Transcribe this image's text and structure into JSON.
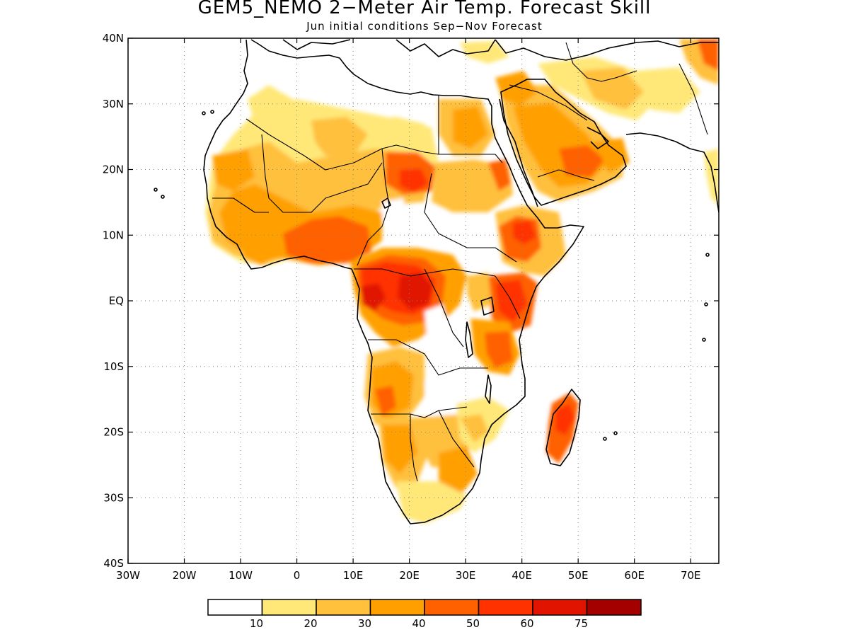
{
  "title": "GEM5_NEMO 2−Meter Air Temp. Forecast Skill",
  "subtitle": "Jun initial conditions  Sep−Nov Forecast",
  "map": {
    "lon_range": [
      -30,
      75
    ],
    "lat_range": [
      -40,
      40
    ],
    "grid": "dotted",
    "x_ticks": [
      "30W",
      "20W",
      "10W",
      "0",
      "10E",
      "20E",
      "30E",
      "40E",
      "50E",
      "60E",
      "70E"
    ],
    "y_ticks": [
      "40N",
      "30N",
      "20N",
      "10N",
      "EQ",
      "10S",
      "20S",
      "30S",
      "40S"
    ]
  },
  "colorbar": {
    "colors": [
      "#ffffff",
      "#ffe878",
      "#ffc03c",
      "#ffa000",
      "#ff6000",
      "#ff3200",
      "#e11400",
      "#a50000"
    ],
    "labels": [
      "10",
      "20",
      "30",
      "40",
      "50",
      "60",
      "75"
    ]
  },
  "chart_data": {
    "type": "heatmap",
    "title": "GEM5_NEMO 2−Meter Air Temp. Forecast Skill",
    "subtitle": "Jun initial conditions  Sep−Nov Forecast",
    "x_range": [
      -30,
      75
    ],
    "y_range": [
      -40,
      40
    ],
    "levels": [
      10,
      20,
      30,
      40,
      50,
      60,
      75
    ],
    "regions": [
      {
        "lon": [
          -13,
          -3
        ],
        "lat": [
          12,
          22
        ],
        "skill": 30
      },
      {
        "lon": [
          -5,
          5
        ],
        "lat": [
          15,
          28
        ],
        "skill": 20
      },
      {
        "lon": [
          0,
          12
        ],
        "lat": [
          5,
          12
        ],
        "skill": 50
      },
      {
        "lon": [
          8,
          16
        ],
        "lat": [
          14,
          22
        ],
        "skill": 30
      },
      {
        "lon": [
          14,
          25
        ],
        "lat": [
          14,
          24
        ],
        "skill": 40
      },
      {
        "lon": [
          10,
          28
        ],
        "lat": [
          -2,
          6
        ],
        "skill": 60
      },
      {
        "lon": [
          17,
          24
        ],
        "lat": [
          -1,
          4
        ],
        "skill": 75
      },
      {
        "lon": [
          33,
          42
        ],
        "lat": [
          -3,
          9
        ],
        "skill": 60
      },
      {
        "lon": [
          30,
          38
        ],
        "lat": [
          -10,
          -3
        ],
        "skill": 50
      },
      {
        "lon": [
          14,
          26
        ],
        "lat": [
          -25,
          -12
        ],
        "skill": 40
      },
      {
        "lon": [
          23,
          31
        ],
        "lat": [
          -30,
          -20
        ],
        "skill": 30
      },
      {
        "lon": [
          44,
          50
        ],
        "lat": [
          -24,
          -15
        ],
        "skill": 50
      },
      {
        "lon": [
          36,
          57
        ],
        "lat": [
          15,
          30
        ],
        "skill": 30
      },
      {
        "lon": [
          25,
          35
        ],
        "lat": [
          22,
          30
        ],
        "skill": 30
      },
      {
        "lon": [
          48,
          58
        ],
        "lat": [
          30,
          36
        ],
        "skill": 20
      },
      {
        "lon": [
          68,
          75
        ],
        "lat": [
          34,
          40
        ],
        "skill": 40
      }
    ]
  }
}
